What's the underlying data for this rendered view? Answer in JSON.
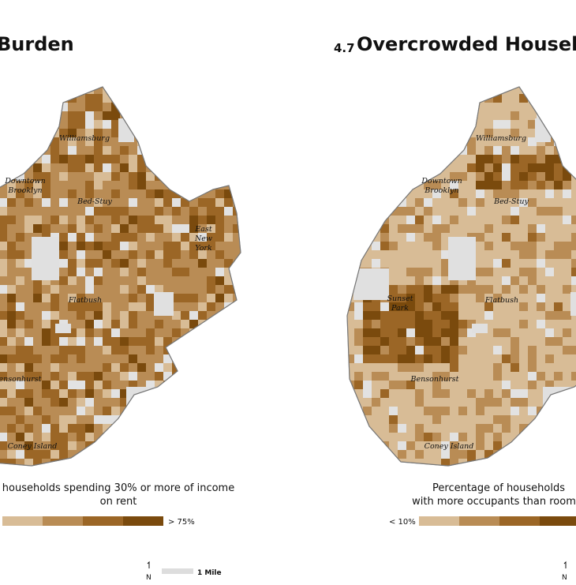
{
  "maps": [
    {
      "number": null,
      "title": "Burden",
      "places": [
        {
          "label": "Williamsburg"
        },
        {
          "label": "Downtown"
        },
        {
          "label": "Brooklyn"
        },
        {
          "label": "Bed-Stuy"
        },
        {
          "label": "East"
        },
        {
          "label": "New"
        },
        {
          "label": "York"
        },
        {
          "label": "Flatbush"
        },
        {
          "label": "Bensonhurst"
        },
        {
          "label": "Coney Island"
        }
      ],
      "legend": {
        "caption": [
          "households spending 30% or more of income",
          "on rent"
        ],
        "end_label": "> 75%"
      }
    },
    {
      "number": "4.7",
      "title": "Overcrowded Househo",
      "places": [
        {
          "label": "Williamsburg"
        },
        {
          "label": "Downtown"
        },
        {
          "label": "Brooklyn"
        },
        {
          "label": "Bed-Stuy"
        },
        {
          "label": "Sunset"
        },
        {
          "label": "Park"
        },
        {
          "label": "Flatbush"
        },
        {
          "label": "Bensonhurst"
        },
        {
          "label": "Coney Island"
        }
      ],
      "legend": {
        "caption": [
          "Percentage of households",
          "with more occupants than room"
        ],
        "start_label": "< 10%"
      }
    }
  ],
  "scale": {
    "north": "N",
    "distance": "1 Mile"
  }
}
